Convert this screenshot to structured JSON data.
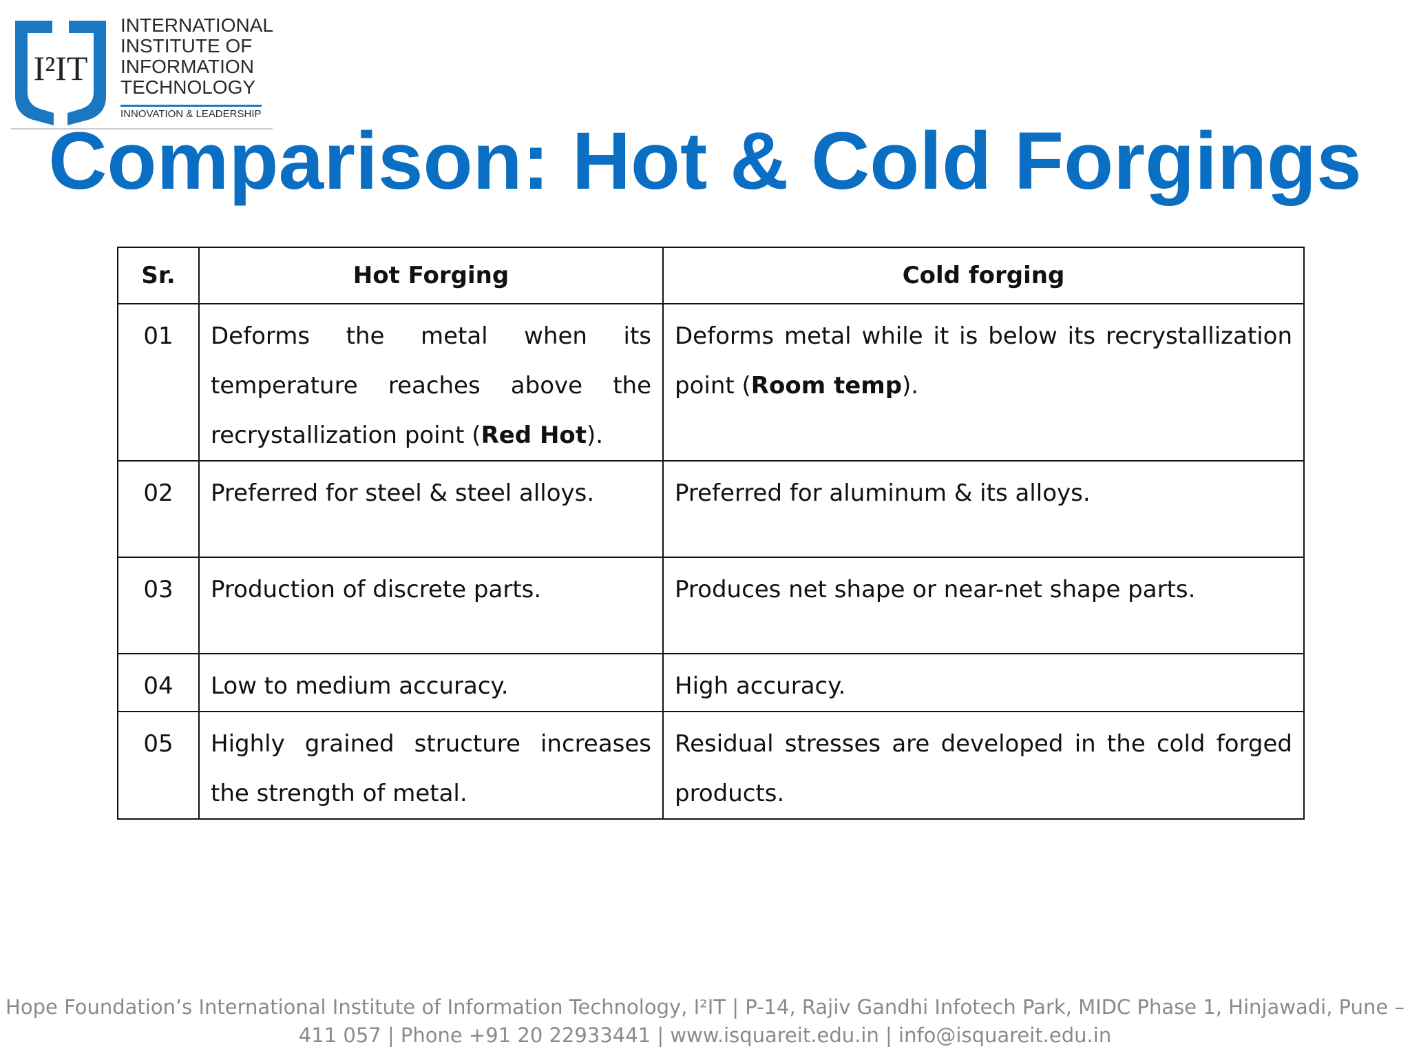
{
  "logo": {
    "mark": "I²IT",
    "lines": [
      "INTERNATIONAL",
      "INSTITUTE OF",
      "INFORMATION",
      "TECHNOLOGY"
    ],
    "tagline": "INNOVATION & LEADERSHIP"
  },
  "title": "Comparison: Hot & Cold Forgings",
  "table": {
    "header": [
      "Sr.",
      "Hot Forging",
      "Cold forging"
    ],
    "rows": [
      {
        "sr": "01",
        "hot": [
          {
            "text": "Deforms the metal when its temperature reaches above the recrystallization point ("
          },
          {
            "text": "Red Hot",
            "bold": true
          },
          {
            "text": ")."
          }
        ],
        "cold": [
          {
            "text": "Deforms metal while it is below its recrystallization point ("
          },
          {
            "text": "Room temp",
            "bold": true
          },
          {
            "text": ")."
          }
        ]
      },
      {
        "sr": "02",
        "hot": [
          {
            "text": "Preferred for steel & steel alloys."
          }
        ],
        "cold": [
          {
            "text": "Preferred for aluminum & its alloys."
          }
        ]
      },
      {
        "sr": "03",
        "hot": [
          {
            "text": "Production of discrete parts."
          }
        ],
        "cold": [
          {
            "text": "Produces net shape or near-net shape parts."
          }
        ]
      },
      {
        "sr": "04",
        "hot": [
          {
            "text": "Low to medium accuracy."
          }
        ],
        "cold": [
          {
            "text": "High accuracy."
          }
        ]
      },
      {
        "sr": "05",
        "hot": [
          {
            "text": "Highly grained structure increases the strength of metal."
          }
        ],
        "cold": [
          {
            "text": "Residual stresses are developed in the cold forged products."
          }
        ]
      }
    ]
  },
  "footer": [
    "Hope Foundation’s International Institute of Information Technology, I²IT | P-14, Rajiv Gandhi Infotech Park, MIDC Phase 1, Hinjawadi, Pune –",
    "411 057 | Phone +91 20 22933441 | www.isquareit.edu.in | info@isquareit.edu.in"
  ]
}
